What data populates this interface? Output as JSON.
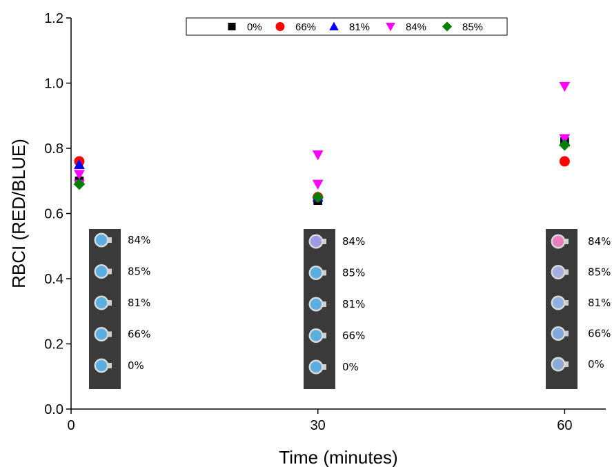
{
  "chart_data": {
    "type": "scatter",
    "title": "",
    "xlabel": "Time (minutes)",
    "ylabel": "RBCI (RED/BLUE)",
    "xlim": [
      0,
      65
    ],
    "ylim": [
      0,
      1.2
    ],
    "x_ticks": [
      0,
      30,
      60
    ],
    "y_ticks": [
      0.0,
      0.2,
      0.4,
      0.6,
      0.8,
      1.0,
      1.2
    ],
    "x_tick_labels": [
      "0",
      "30",
      "60"
    ],
    "y_tick_labels": [
      "0.0",
      "0.2",
      "0.4",
      "0.6",
      "0.8",
      "1.0",
      "1.2"
    ],
    "grid": false,
    "legend_position": "top-center",
    "series": [
      {
        "name": "0%",
        "marker": "square",
        "color": "#000000",
        "points": [
          [
            1,
            0.7
          ],
          [
            30,
            0.64
          ],
          [
            60,
            0.82
          ]
        ]
      },
      {
        "name": "66%",
        "marker": "circle",
        "color": "#ff0000",
        "points": [
          [
            1,
            0.76
          ],
          [
            30,
            0.65
          ],
          [
            60,
            0.76
          ]
        ]
      },
      {
        "name": "81%",
        "marker": "triangle-up",
        "color": "#0000ff",
        "points": [
          [
            1,
            0.75
          ],
          [
            30,
            0.65
          ],
          [
            60,
            0.82
          ]
        ]
      },
      {
        "name": "84%",
        "marker": "triangle-down",
        "color": "#ff00ff",
        "points": [
          [
            1,
            0.72
          ],
          [
            1,
            0.69
          ],
          [
            30,
            0.78
          ],
          [
            30,
            0.69
          ],
          [
            60,
            0.99
          ],
          [
            60,
            0.83
          ]
        ]
      },
      {
        "name": "85%",
        "marker": "diamond",
        "color": "#008000",
        "points": [
          [
            1,
            0.69
          ],
          [
            30,
            0.65
          ],
          [
            60,
            0.81
          ]
        ]
      }
    ],
    "photo_insets": [
      {
        "x": 1,
        "labels": [
          "84%",
          "85%",
          "81%",
          "66%",
          "0%"
        ],
        "spot_colors": [
          "#5aaee0",
          "#5aaee0",
          "#5aaee0",
          "#5aaee0",
          "#5aaee0"
        ]
      },
      {
        "x": 30,
        "labels": [
          "84%",
          "85%",
          "81%",
          "66%",
          "0%"
        ],
        "spot_colors": [
          "#9e9ae6",
          "#5aaee0",
          "#5aaee0",
          "#5aaee0",
          "#5aaee0"
        ]
      },
      {
        "x": 60,
        "labels": [
          "84%",
          "85%",
          "81%",
          "66%",
          "0%"
        ],
        "spot_colors": [
          "#e880c0",
          "#a4aee0",
          "#8db2e0",
          "#7fa8dc",
          "#8aaad8"
        ]
      }
    ]
  }
}
